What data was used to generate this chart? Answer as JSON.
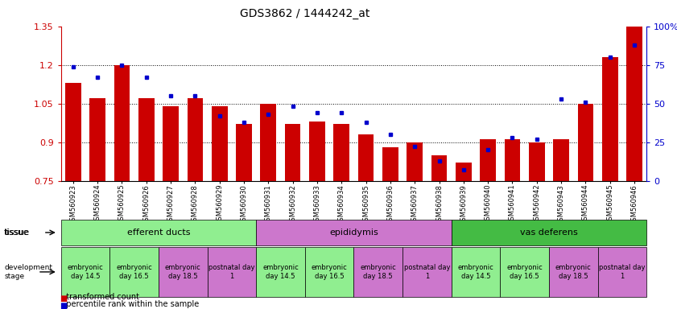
{
  "title": "GDS3862 / 1444242_at",
  "samples": [
    "GSM560923",
    "GSM560924",
    "GSM560925",
    "GSM560926",
    "GSM560927",
    "GSM560928",
    "GSM560929",
    "GSM560930",
    "GSM560931",
    "GSM560932",
    "GSM560933",
    "GSM560934",
    "GSM560935",
    "GSM560936",
    "GSM560937",
    "GSM560938",
    "GSM560939",
    "GSM560940",
    "GSM560941",
    "GSM560942",
    "GSM560943",
    "GSM560944",
    "GSM560945",
    "GSM560946"
  ],
  "transformed_count": [
    1.13,
    1.07,
    1.2,
    1.07,
    1.04,
    1.07,
    1.04,
    0.97,
    1.05,
    0.97,
    0.98,
    0.97,
    0.93,
    0.88,
    0.9,
    0.85,
    0.82,
    0.91,
    0.91,
    0.9,
    0.91,
    1.05,
    1.23,
    1.35
  ],
  "percentile_rank": [
    74,
    67,
    75,
    67,
    55,
    55,
    42,
    38,
    43,
    48,
    44,
    44,
    38,
    30,
    22,
    13,
    7,
    20,
    28,
    27,
    53,
    51,
    80,
    88
  ],
  "ylim_left": [
    0.75,
    1.35
  ],
  "ylim_right": [
    0,
    100
  ],
  "yticks_left": [
    0.75,
    0.9,
    1.05,
    1.2,
    1.35
  ],
  "yticks_right": [
    0,
    25,
    50,
    75,
    100
  ],
  "bar_color": "#cc0000",
  "dot_color": "#0000cc",
  "tissue_groups": [
    {
      "label": "efferent ducts",
      "start": 0,
      "end": 7,
      "color": "#90ee90"
    },
    {
      "label": "epididymis",
      "start": 8,
      "end": 15,
      "color": "#cc77cc"
    },
    {
      "label": "vas deferens",
      "start": 16,
      "end": 23,
      "color": "#44bb44"
    }
  ],
  "dev_stage_groups": [
    {
      "label": "embryonic\nday 14.5",
      "start": 0,
      "end": 1,
      "color": "#90ee90"
    },
    {
      "label": "embryonic\nday 16.5",
      "start": 2,
      "end": 3,
      "color": "#90ee90"
    },
    {
      "label": "embryonic\nday 18.5",
      "start": 4,
      "end": 5,
      "color": "#cc77cc"
    },
    {
      "label": "postnatal day\n1",
      "start": 6,
      "end": 7,
      "color": "#cc77cc"
    },
    {
      "label": "embryonic\nday 14.5",
      "start": 8,
      "end": 9,
      "color": "#90ee90"
    },
    {
      "label": "embryonic\nday 16.5",
      "start": 10,
      "end": 11,
      "color": "#90ee90"
    },
    {
      "label": "embryonic\nday 18.5",
      "start": 12,
      "end": 13,
      "color": "#cc77cc"
    },
    {
      "label": "postnatal day\n1",
      "start": 14,
      "end": 15,
      "color": "#cc77cc"
    },
    {
      "label": "embryonic\nday 14.5",
      "start": 16,
      "end": 17,
      "color": "#90ee90"
    },
    {
      "label": "embryonic\nday 16.5",
      "start": 18,
      "end": 19,
      "color": "#90ee90"
    },
    {
      "label": "embryonic\nday 18.5",
      "start": 20,
      "end": 21,
      "color": "#cc77cc"
    },
    {
      "label": "postnatal day\n1",
      "start": 22,
      "end": 23,
      "color": "#cc77cc"
    }
  ]
}
